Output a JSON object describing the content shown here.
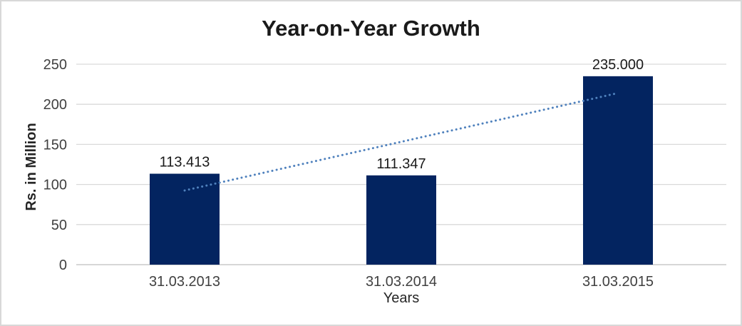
{
  "chart": {
    "title": "Year-on-Year Growth",
    "xlabel": "Years",
    "ylabel": "Rs. in Million"
  },
  "chart_data": {
    "type": "bar",
    "title": "Year-on-Year Growth",
    "categories": [
      "31.03.2013",
      "31.03.2014",
      "31.03.2015"
    ],
    "values": [
      113.413,
      111.347,
      235.0
    ],
    "data_labels": [
      "113.413",
      "111.347",
      "235.000"
    ],
    "xlabel": "Years",
    "ylabel": "Rs. in Million",
    "ylim": [
      0,
      250
    ],
    "yticks": [
      0,
      50,
      100,
      150,
      200,
      250
    ],
    "grid": "horizontal-major",
    "legend": "none",
    "colors": {
      "bar": "#032460",
      "trendline": "#4F81BD",
      "gridline": "#D9D9D9",
      "axis_line": "#BFBFBF",
      "tick_text": "#404040",
      "label_text": "#1a1a1a"
    },
    "trendline": {
      "type": "linear",
      "style": "dotted",
      "start_value": 92.5,
      "end_value": 214.0
    }
  }
}
